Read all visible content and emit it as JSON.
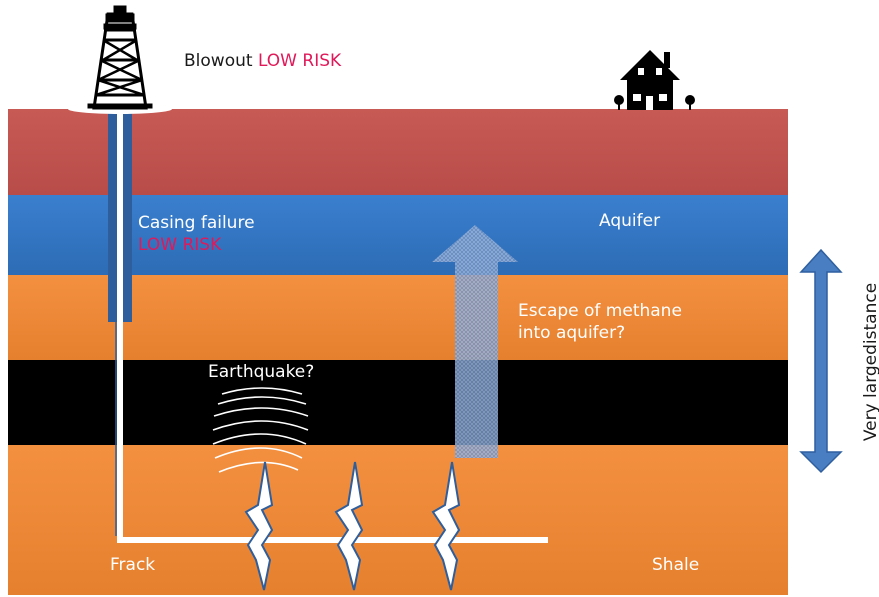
{
  "labels": {
    "blowout": "Blowout",
    "blowout_risk": "LOW RISK",
    "casing_failure": "Casing failure",
    "casing_risk": "LOW RISK",
    "aquifer": "Aquifer",
    "escape_line1": "Escape of methane",
    "escape_line2": "into aquifer?",
    "earthquake": "Earthquake?",
    "frack": "Frack",
    "shale": "Shale",
    "distance": "Very largedistance"
  },
  "colors": {
    "surface_layer": "#c0504d",
    "aquifer_layer": "#3a7dc9",
    "orange_layer": "#f0893a",
    "black_layer": "#000000",
    "risk_text": "#e0195a",
    "arrow_blue": "#4a7ec2"
  },
  "icons": [
    "drilling-rig-icon",
    "house-icon",
    "fracture-icon",
    "seismic-wave-icon",
    "double-arrow-icon"
  ]
}
